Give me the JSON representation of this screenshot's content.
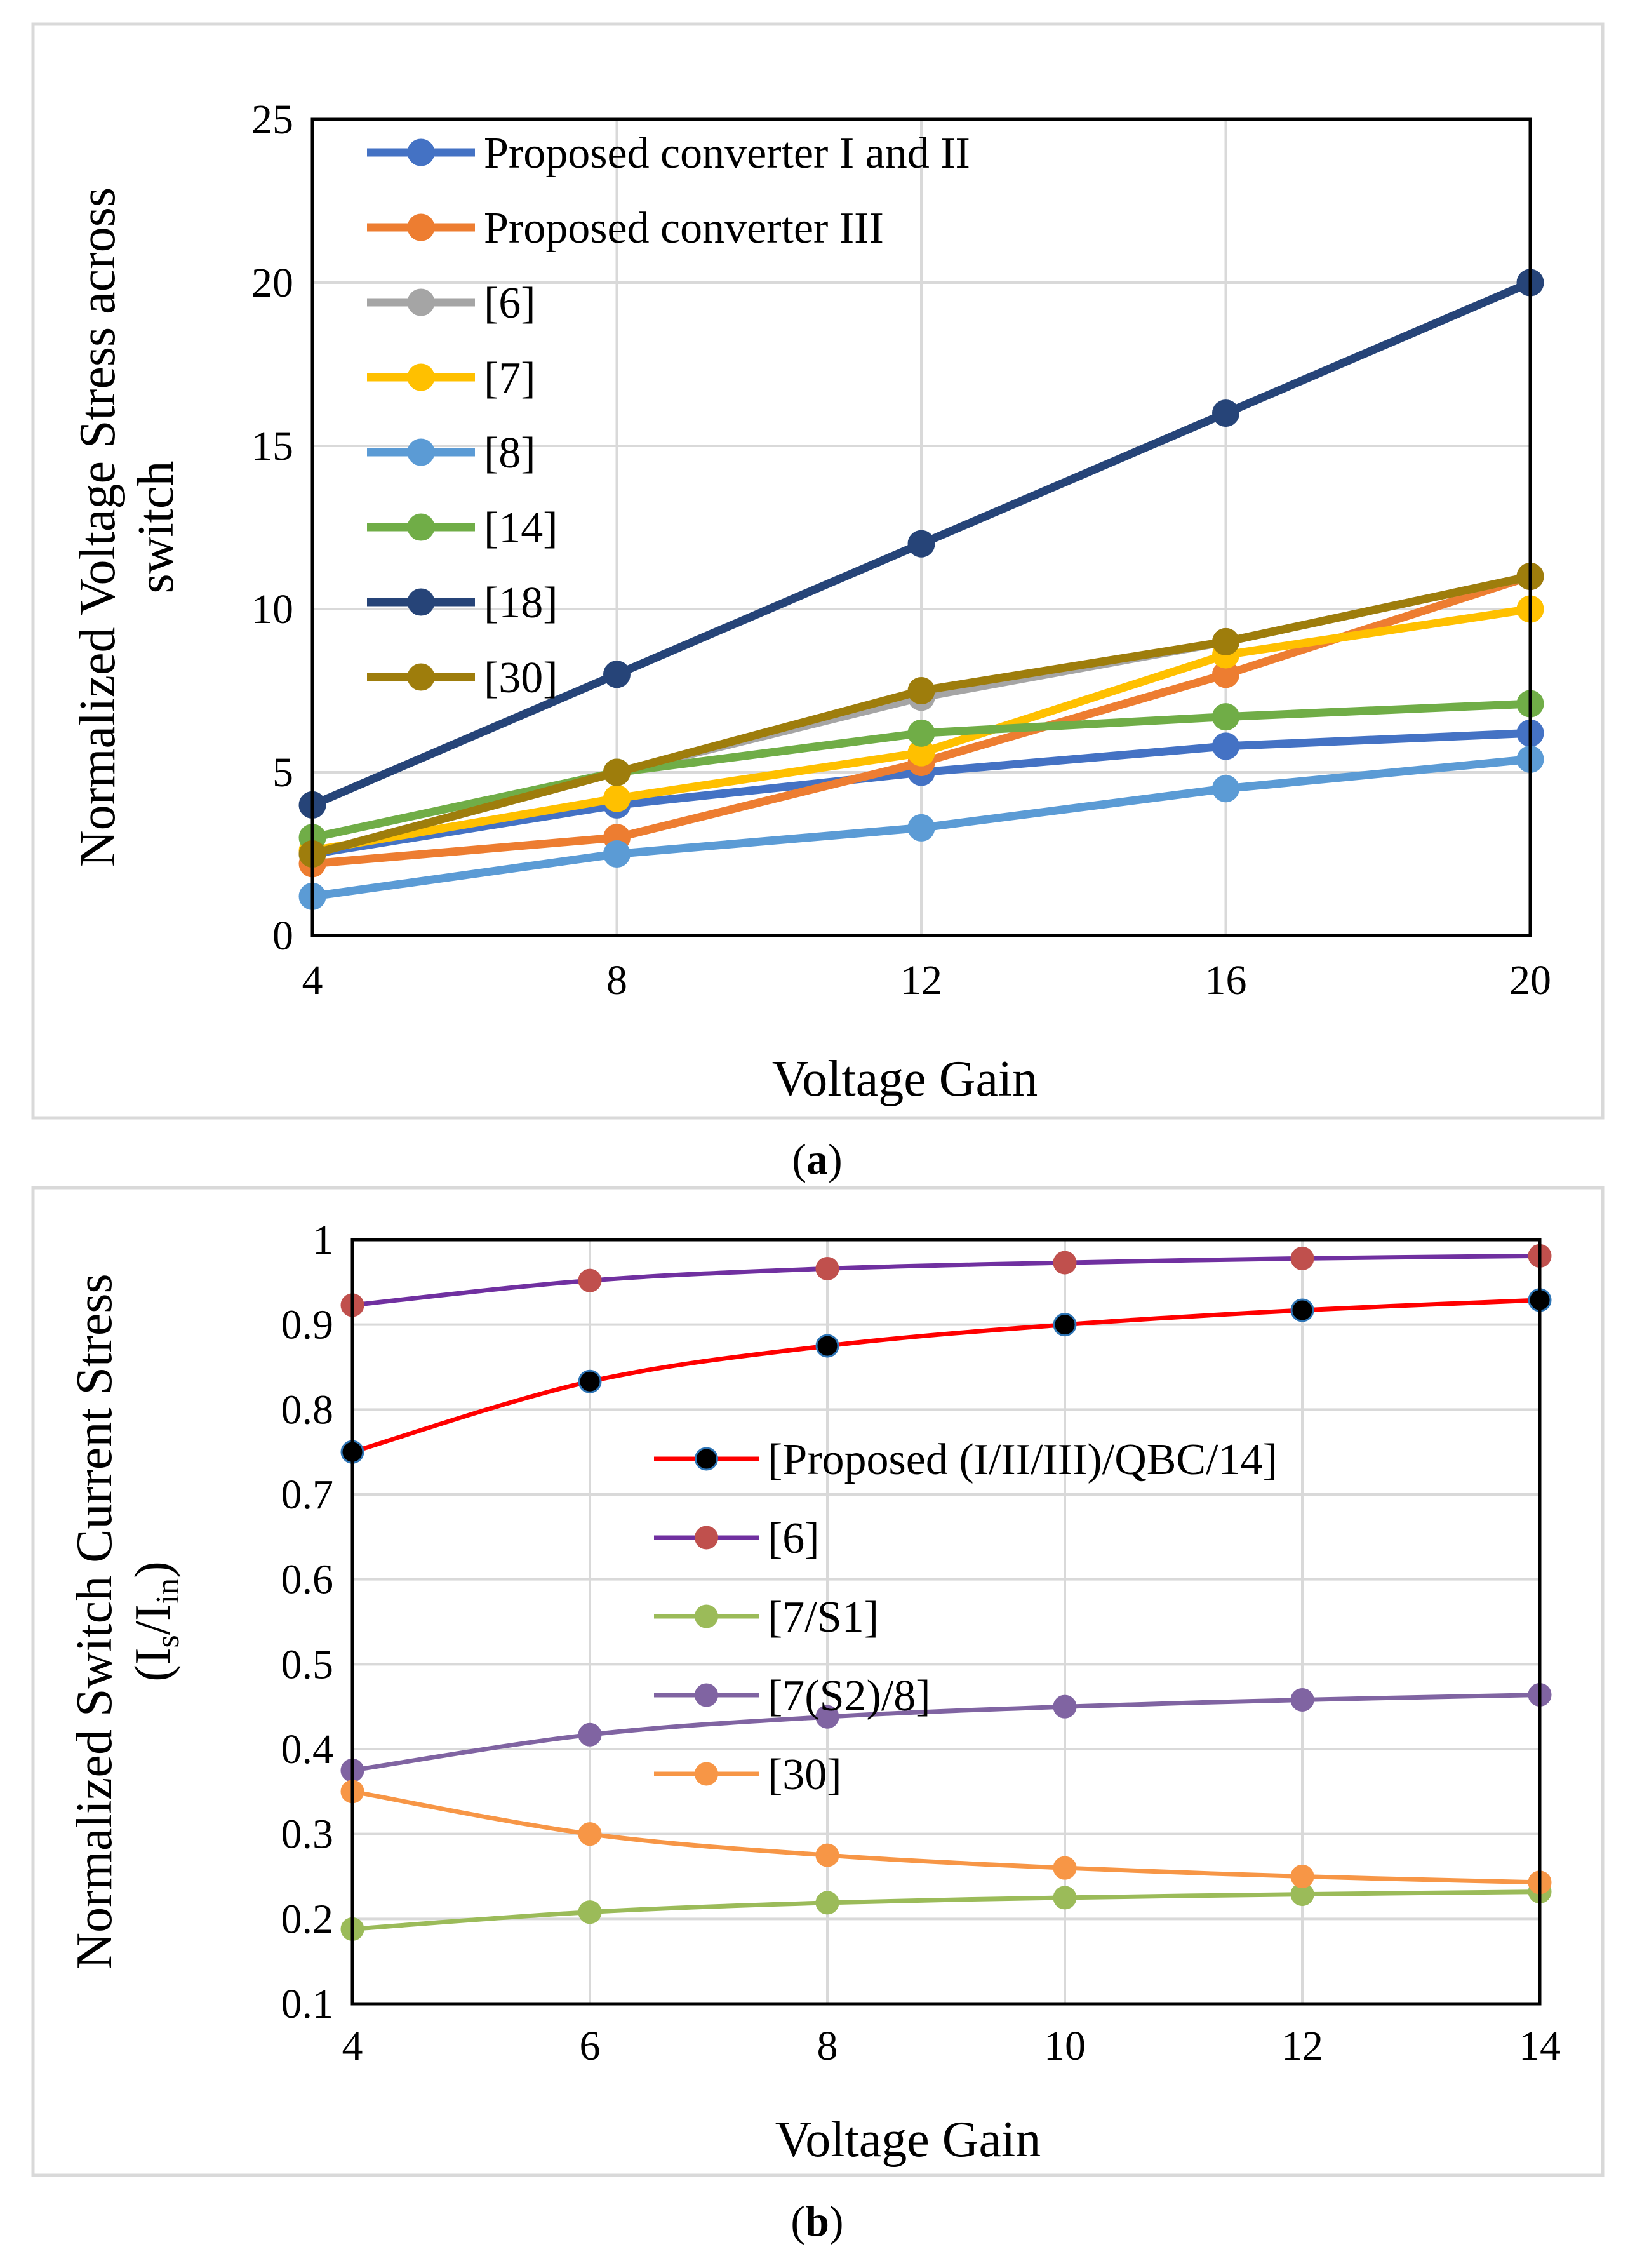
{
  "chart_data": [
    {
      "type": "line",
      "caption": "a",
      "title": "",
      "xlabel": "Voltage Gain",
      "ylabel_lines": [
        "Normalized Voltage Stress across",
        "switch"
      ],
      "x": [
        4,
        8,
        12,
        16,
        20
      ],
      "xticks": [
        "4",
        "8",
        "12",
        "16",
        "20"
      ],
      "ylim": [
        0,
        25
      ],
      "yticks": [
        "0",
        "5",
        "10",
        "15",
        "20",
        "25"
      ],
      "grid": true,
      "legend_position": "top-left",
      "series": [
        {
          "name": "Proposed converter I and II",
          "color": "#4472c4",
          "values": [
            2.5,
            4,
            5,
            5.8,
            6.2
          ]
        },
        {
          "name": "Proposed converter III",
          "color": "#ed7d31",
          "values": [
            2.2,
            3,
            5.3,
            8,
            11
          ]
        },
        {
          "name": "[6]",
          "color": "#a5a5a5",
          "values": [
            2.5,
            5,
            7.3,
            9,
            11
          ]
        },
        {
          "name": "[7]",
          "color": "#ffc000",
          "values": [
            2.6,
            4.2,
            5.6,
            8.6,
            10
          ]
        },
        {
          "name": "[8]",
          "color": "#5b9bd5",
          "values": [
            1.2,
            2.5,
            3.3,
            4.5,
            5.4
          ]
        },
        {
          "name": "[14]",
          "color": "#70ad47",
          "values": [
            3,
            5,
            6.2,
            6.7,
            7.1
          ]
        },
        {
          "name": "[18]",
          "color": "#264478",
          "values": [
            4,
            8,
            12,
            16,
            20
          ]
        },
        {
          "name": "[30]",
          "color": "#9e7d0c",
          "values": [
            2.5,
            5,
            7.5,
            9,
            11
          ]
        }
      ]
    },
    {
      "type": "line",
      "caption": "b",
      "title": "",
      "xlabel": "Voltage Gain",
      "ylabel_lines": [
        "Normalized Switch Current Stress"
      ],
      "ylabel_sub": {
        "open": "(I",
        "sub1": "s",
        "mid": "/I",
        "sub2": "in",
        "close": ")"
      },
      "x": [
        4,
        6,
        8,
        10,
        12,
        14
      ],
      "xticks": [
        "4",
        "6",
        "8",
        "10",
        "12",
        "14"
      ],
      "ylim": [
        0.1,
        1
      ],
      "yticks": [
        "0.1",
        "0.2",
        "0.3",
        "0.4",
        "0.5",
        "0.6",
        "0.7",
        "0.8",
        "0.9",
        "1"
      ],
      "grid": true,
      "legend_position": "center",
      "series": [
        {
          "name": "[Proposed (I/II/III)/QBC/14]",
          "color": "#ff0000",
          "marker_color": "#000000",
          "marker_edge": "#2e75b6",
          "values": [
            0.75,
            0.833,
            0.875,
            0.9,
            0.917,
            0.929
          ]
        },
        {
          "name": "[6]",
          "color": "#7030a0",
          "marker_color": "#c0504d",
          "marker_edge": "#c0504d",
          "values": [
            0.923,
            0.952,
            0.966,
            0.973,
            0.978,
            0.981
          ]
        },
        {
          "name": "[7/S1]",
          "color": "#9bbb59",
          "marker_color": "#9bbb59",
          "marker_edge": "#9bbb59",
          "values": [
            0.188,
            0.208,
            0.219,
            0.225,
            0.229,
            0.232
          ]
        },
        {
          "name": "[7(S2)/8]",
          "color": "#8064a2",
          "marker_color": "#8064a2",
          "marker_edge": "#8064a2",
          "values": [
            0.375,
            0.417,
            0.438,
            0.45,
            0.458,
            0.464
          ]
        },
        {
          "name": "[30]",
          "color": "#f79646",
          "marker_color": "#f79646",
          "marker_edge": "#f79646",
          "values": [
            0.35,
            0.3,
            0.275,
            0.26,
            0.25,
            0.243
          ]
        }
      ]
    }
  ]
}
